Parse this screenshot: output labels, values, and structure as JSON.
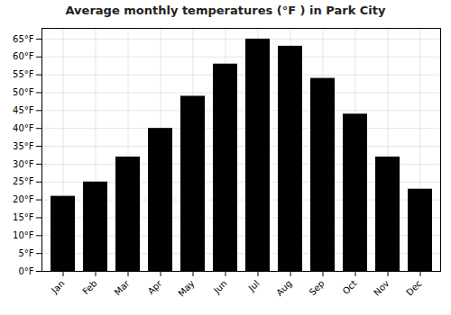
{
  "chart_data": {
    "type": "bar",
    "title": "Average monthly temperatures (°F ) in Park City",
    "categories": [
      "Jan",
      "Feb",
      "Mar",
      "Apr",
      "May",
      "Jun",
      "Jul",
      "Aug",
      "Sep",
      "Oct",
      "Nov",
      "Dec"
    ],
    "values": [
      21,
      25,
      32,
      40,
      49,
      58,
      65,
      63,
      54,
      44,
      32,
      23
    ],
    "ylim": [
      0,
      68
    ],
    "yticks": [
      {
        "value": 0,
        "label": "0°F"
      },
      {
        "value": 5,
        "label": "5°F"
      },
      {
        "value": 10,
        "label": "10°F"
      },
      {
        "value": 15,
        "label": "15°F"
      },
      {
        "value": 20,
        "label": "20°F"
      },
      {
        "value": 25,
        "label": "25°F"
      },
      {
        "value": 30,
        "label": "30°F"
      },
      {
        "value": 35,
        "label": "35°F"
      },
      {
        "value": 40,
        "label": "40°F"
      },
      {
        "value": 45,
        "label": "45°F"
      },
      {
        "value": 50,
        "label": "50°F"
      },
      {
        "value": 55,
        "label": "55°F"
      },
      {
        "value": 60,
        "label": "60°F"
      },
      {
        "value": 65,
        "label": "65°F"
      }
    ],
    "grid": true
  }
}
